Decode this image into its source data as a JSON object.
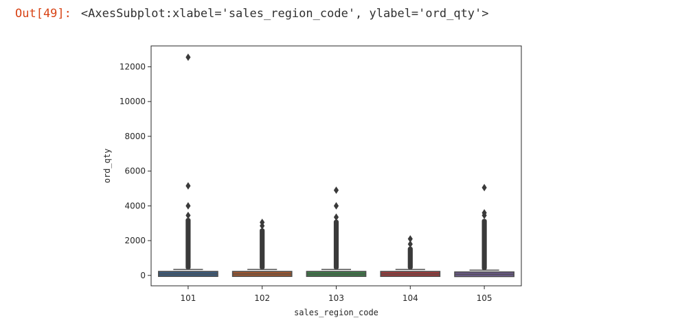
{
  "cell": {
    "prompt": "Out[49]:",
    "repr": "<AxesSubplot:xlabel='sales_region_code', ylabel='ord_qty'>"
  },
  "colors": {
    "prompt": "#d84315",
    "frame": "#262626",
    "outlier": "#3a3a3a"
  },
  "chart_data": {
    "type": "box",
    "xlabel": "sales_region_code",
    "ylabel": "ord_qty",
    "categories": [
      "101",
      "102",
      "103",
      "104",
      "105"
    ],
    "yticks": [
      0,
      2000,
      4000,
      6000,
      8000,
      10000,
      12000
    ],
    "ylim": [
      -600,
      13200
    ],
    "grid": false,
    "legend": "none",
    "boxes": [
      {
        "category": "101",
        "color": "#3b5b7d",
        "q1": 20,
        "median": 80,
        "q3": 150,
        "whisker_low": 0,
        "whisker_high": 340,
        "outlier_max_dense": 3300,
        "outliers_sparse": [
          3450,
          4000,
          5150,
          12550
        ]
      },
      {
        "category": "102",
        "color": "#a0562e",
        "q1": 20,
        "median": 80,
        "q3": 150,
        "whisker_low": 0,
        "whisker_high": 340,
        "outlier_max_dense": 2700,
        "outliers_sparse": [
          2850,
          3050
        ]
      },
      {
        "category": "103",
        "color": "#3d7a47",
        "q1": 20,
        "median": 80,
        "q3": 150,
        "whisker_low": 0,
        "whisker_high": 340,
        "outlier_max_dense": 3200,
        "outliers_sparse": [
          3350,
          4000,
          4900
        ]
      },
      {
        "category": "104",
        "color": "#9c3a3a",
        "q1": 20,
        "median": 80,
        "q3": 150,
        "whisker_low": 0,
        "whisker_high": 340,
        "outlier_max_dense": 1650,
        "outliers_sparse": [
          1800,
          2100
        ]
      },
      {
        "category": "105",
        "color": "#6b5a8a",
        "q1": 10,
        "median": 60,
        "q3": 120,
        "whisker_low": 0,
        "whisker_high": 300,
        "outlier_max_dense": 3250,
        "outliers_sparse": [
          3450,
          3600,
          5050
        ]
      }
    ]
  }
}
